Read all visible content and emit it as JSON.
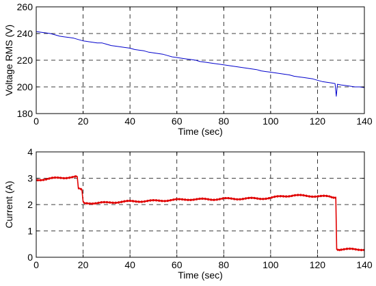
{
  "chart_data": [
    {
      "type": "line",
      "title": "",
      "xlabel": "Time (sec)",
      "ylabel": "Voltage RMS (V)",
      "xlim": [
        0,
        140
      ],
      "ylim": [
        180,
        260
      ],
      "xticks": [
        "0",
        "20",
        "40",
        "60",
        "80",
        "100",
        "120",
        "140"
      ],
      "yticks": [
        "180",
        "200",
        "220",
        "240",
        "260"
      ],
      "grid": "dashed",
      "color": "#0000cc",
      "series": [
        {
          "x": [
            0,
            2,
            4,
            6,
            8,
            10,
            12,
            14,
            16,
            18,
            20,
            22,
            24,
            26,
            28,
            30,
            32,
            34,
            36,
            38,
            40,
            42,
            44,
            46,
            48,
            50,
            52,
            54,
            56,
            58,
            60,
            62,
            64,
            66,
            68,
            70,
            72,
            74,
            76,
            78,
            80,
            82,
            84,
            86,
            88,
            90,
            92,
            94,
            96,
            98,
            100,
            102,
            104,
            106,
            108,
            110,
            112,
            114,
            116,
            118,
            120,
            122,
            124,
            126,
            127.5,
            128,
            128.5,
            130,
            132,
            134,
            136,
            138,
            140
          ],
          "values": [
            241.5,
            241,
            240.5,
            240,
            239,
            238,
            237.5,
            237,
            236.5,
            235.5,
            234.5,
            234,
            233.5,
            233,
            233,
            232,
            231,
            230.5,
            230,
            229.5,
            229,
            228,
            227.5,
            227,
            226,
            225.5,
            225,
            224.5,
            223.5,
            222.5,
            222,
            221.5,
            221,
            220.5,
            220,
            219,
            218.5,
            218,
            217.5,
            217,
            216.5,
            216,
            215.5,
            215,
            214.5,
            214,
            213.5,
            213,
            212,
            211.5,
            211,
            210.5,
            210,
            209.5,
            209,
            208,
            207.5,
            207,
            206.5,
            206,
            205,
            204,
            203.5,
            203,
            202.5,
            193,
            202,
            201.5,
            201,
            200.5,
            200,
            200,
            199.5
          ]
        }
      ]
    },
    {
      "type": "line",
      "title": "",
      "xlabel": "Time (sec)",
      "ylabel": "Current (A)",
      "xlim": [
        0,
        140
      ],
      "ylim": [
        0,
        4
      ],
      "xticks": [
        "0",
        "20",
        "40",
        "60",
        "80",
        "100",
        "120",
        "140"
      ],
      "yticks": [
        "0",
        "1",
        "2",
        "3",
        "4"
      ],
      "grid": "dashed",
      "color": "#e00000",
      "series": [
        {
          "x": [
            0,
            2,
            4,
            6,
            8,
            10,
            12,
            14,
            16,
            17.5,
            18,
            19.5,
            20,
            20.5,
            22,
            26,
            30,
            35,
            40,
            45,
            50,
            55,
            60,
            65,
            70,
            75,
            80,
            85,
            90,
            95,
            100,
            105,
            110,
            115,
            120,
            125,
            127.8,
            128.2,
            130,
            135,
            138,
            140
          ],
          "values": [
            2.93,
            2.95,
            2.97,
            2.99,
            3.0,
            3.01,
            3.02,
            3.04,
            3.05,
            3.06,
            2.6,
            2.55,
            2.1,
            2.05,
            2.06,
            2.06,
            2.07,
            2.1,
            2.12,
            2.13,
            2.14,
            2.16,
            2.18,
            2.2,
            2.2,
            2.2,
            2.22,
            2.22,
            2.23,
            2.23,
            2.25,
            2.32,
            2.35,
            2.33,
            2.32,
            2.3,
            2.28,
            0.3,
            0.3,
            0.3,
            0.3,
            0.3
          ]
        }
      ]
    }
  ]
}
